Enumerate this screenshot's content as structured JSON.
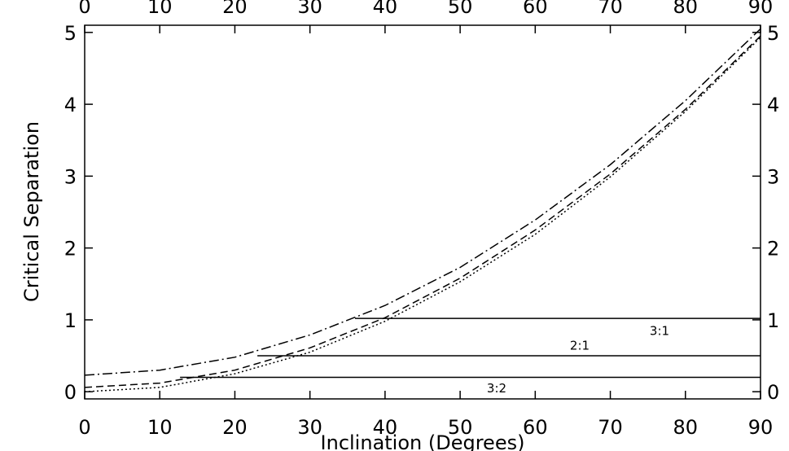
{
  "chart_data": {
    "type": "line",
    "xlabel": "Inclination (Degrees)",
    "ylabel": "Critical Separation",
    "x": [
      0,
      10,
      20,
      30,
      40,
      50,
      60,
      70,
      80,
      90
    ],
    "series": [
      {
        "linestyle": "dashdot",
        "color": "#000000",
        "values": [
          0.23,
          0.3,
          0.48,
          0.79,
          1.2,
          1.73,
          2.39,
          3.16,
          4.05,
          5.05
        ]
      },
      {
        "linestyle": "dashed",
        "color": "#000000",
        "values": [
          0.06,
          0.12,
          0.3,
          0.61,
          1.03,
          1.58,
          2.25,
          3.03,
          3.93,
          4.95
        ]
      },
      {
        "linestyle": "dotted",
        "color": "#000000",
        "values": [
          0,
          0.06,
          0.25,
          0.55,
          0.98,
          1.53,
          2.19,
          2.99,
          3.9,
          4.93
        ]
      }
    ],
    "hlines": [
      {
        "label": "3:1",
        "y": 1.02,
        "xmin": 36,
        "xmax": 90
      },
      {
        "label": "2:1",
        "y": 0.5,
        "xmin": 23,
        "xmax": 90
      },
      {
        "label": "3:2",
        "y": 0.2,
        "xmin": 12.7,
        "xmax": 90
      }
    ],
    "xlim": [
      0,
      90
    ],
    "xticks": [
      0,
      10,
      20,
      30,
      40,
      50,
      60,
      70,
      80,
      90
    ],
    "ylim": [
      -0.1,
      5.1
    ],
    "yticks": [
      0,
      1,
      2,
      3,
      4,
      5
    ],
    "mirror_axes": true
  }
}
